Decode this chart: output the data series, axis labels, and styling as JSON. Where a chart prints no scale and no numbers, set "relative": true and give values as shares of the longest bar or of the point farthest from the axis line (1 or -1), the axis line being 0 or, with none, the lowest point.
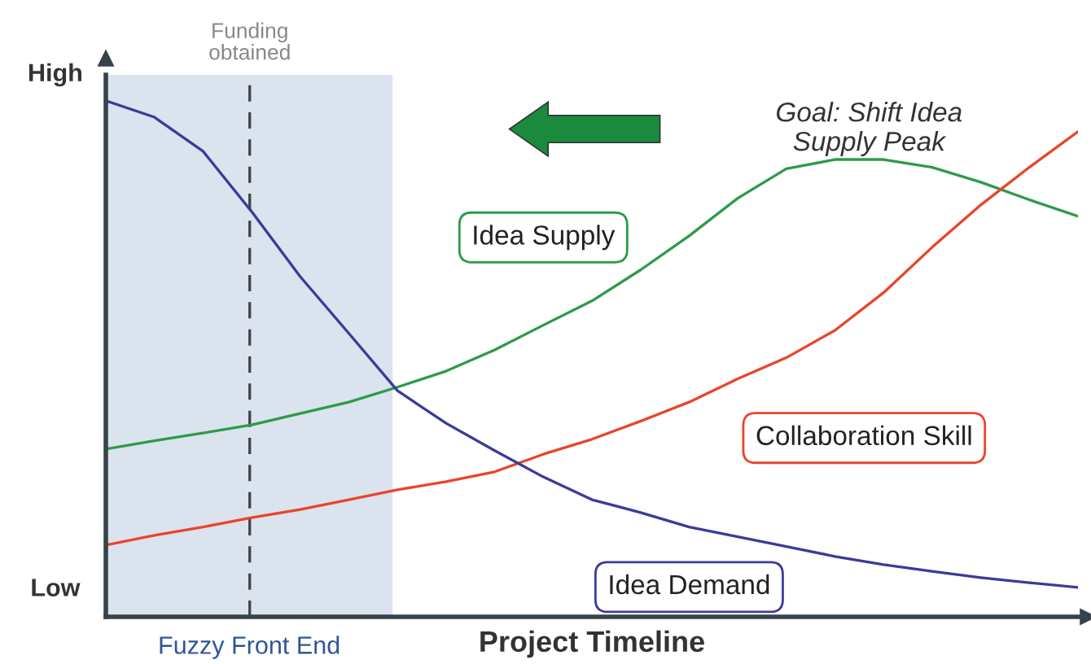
{
  "chart_data": {
    "type": "line",
    "relative": true,
    "xlabel": "Project Timeline",
    "categories": [
      null,
      null,
      null,
      null,
      null,
      null,
      null,
      null,
      null,
      null,
      null,
      null,
      null,
      null,
      null,
      null,
      null,
      null,
      null,
      null,
      null
    ],
    "series": [
      {
        "name": "Idea Supply",
        "color": "#2e9a4a",
        "values": [
          0.325,
          0.341,
          0.356,
          0.372,
          0.394,
          0.416,
          0.445,
          0.476,
          0.517,
          0.565,
          0.612,
          0.672,
          0.738,
          0.811,
          0.868,
          0.886,
          0.886,
          0.871,
          0.842,
          0.808,
          0.776
        ]
      },
      {
        "name": "Collaboration Skill",
        "color": "#e8452c",
        "values": [
          0.139,
          0.158,
          0.174,
          0.192,
          0.208,
          0.227,
          0.246,
          0.262,
          0.281,
          0.315,
          0.344,
          0.379,
          0.416,
          0.461,
          0.502,
          0.555,
          0.628,
          0.716,
          0.798,
          0.871,
          0.94
        ]
      },
      {
        "name": "Idea Demand",
        "color": "#3b3b9a",
        "values": [
          1.0,
          0.968,
          0.902,
          0.785,
          0.659,
          0.549,
          0.438,
          0.375,
          0.322,
          0.271,
          0.227,
          0.202,
          0.174,
          0.155,
          0.136,
          0.117,
          0.101,
          0.088,
          0.076,
          0.066,
          0.057
        ]
      }
    ],
    "annotations": [
      "High",
      "Low",
      "Goal: Shift Idea\nSupply Peak",
      "Funding\nobtained",
      "Fuzzy Front End"
    ]
  }
}
